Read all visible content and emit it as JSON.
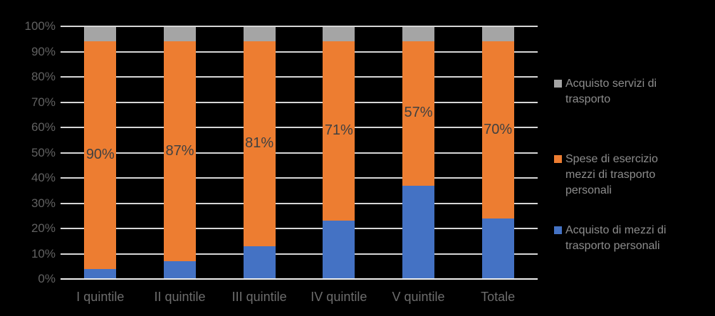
{
  "chart_data": {
    "type": "bar",
    "stacked": true,
    "title": "",
    "xlabel": "",
    "ylabel": "",
    "ylim": [
      0,
      100
    ],
    "grid": true,
    "legend_position": "right",
    "categories": [
      "I quintile",
      "II quintile",
      "III quintile",
      "IV quintile",
      "V quintile",
      "Totale"
    ],
    "series": [
      {
        "name": "Acquisto di mezzi di trasporto personali",
        "color": "#4472C4",
        "values": [
          4,
          7,
          13,
          23,
          37,
          24
        ]
      },
      {
        "name": "Spese di esercizio mezzi di trasporto personali",
        "color": "#ED7D31",
        "values": [
          90,
          87,
          81,
          71,
          57,
          70
        ],
        "data_labels": [
          "90%",
          "87%",
          "81%",
          "71%",
          "57%",
          "70%"
        ]
      },
      {
        "name": "Acquisto servizi di trasporto",
        "color": "#A5A5A5",
        "values": [
          6,
          6,
          6,
          6,
          6,
          6
        ]
      }
    ],
    "y_ticks": [
      "0%",
      "10%",
      "20%",
      "30%",
      "40%",
      "50%",
      "60%",
      "70%",
      "80%",
      "90%",
      "100%"
    ],
    "legend_items": [
      {
        "label": "Acquisto servizi di trasporto",
        "color": "#A5A5A5",
        "lines": [
          "Acquisto servizi di",
          "trasporto"
        ]
      },
      {
        "label": "Spese di esercizio mezzi di trasporto personali",
        "color": "#ED7D31",
        "lines": [
          "Spese di esercizio",
          "mezzi di trasporto",
          "personali"
        ]
      },
      {
        "label": "Acquisto di mezzi di trasporto personali",
        "color": "#4472C4",
        "lines": [
          "Acquisto di mezzi di",
          "trasporto personali"
        ]
      }
    ]
  },
  "colors": {
    "background": "#000000",
    "gridline": "#D6D6D6",
    "axis_line": "#F0F0F0",
    "y_tick_label": "#616161",
    "x_tick_label": "#6D6D6D",
    "data_label": "#404040",
    "legend_text": "#8D8D8D"
  }
}
